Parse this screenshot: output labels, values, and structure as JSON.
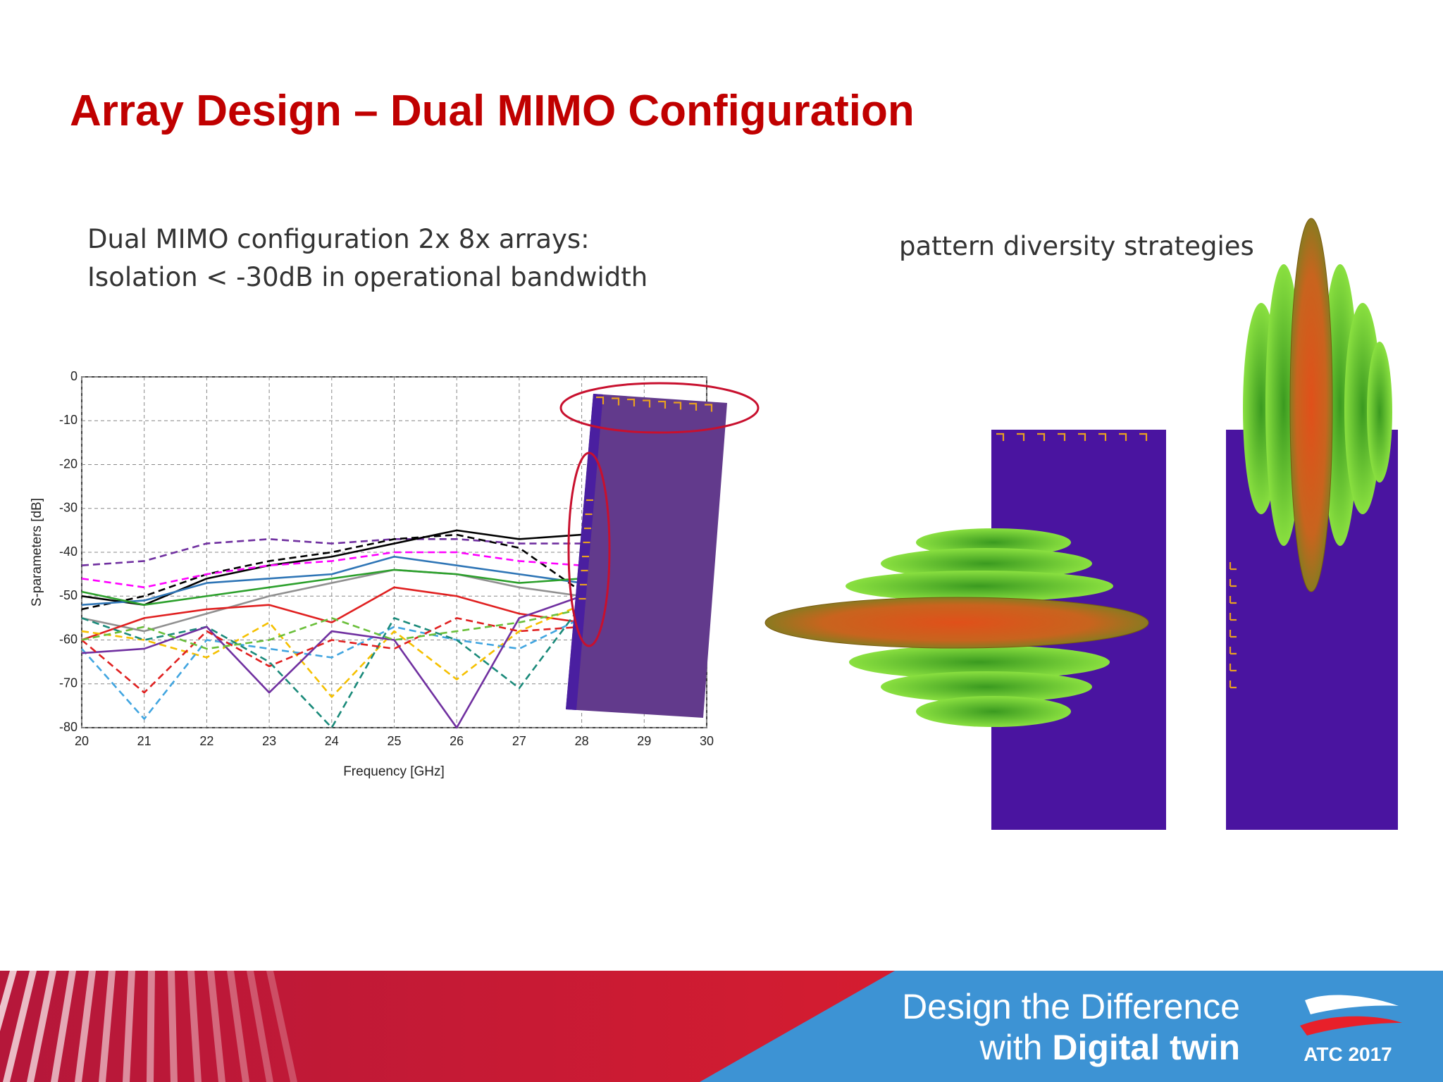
{
  "header": {
    "title": "Array Design – Dual MIMO Configuration"
  },
  "body": {
    "left_lines": [
      "Dual MIMO configuration 2x 8x arrays:",
      "Isolation < -30dB in operational bandwidth"
    ],
    "right_caption": "pattern diversity strategies"
  },
  "chart_data": {
    "type": "line",
    "xlabel": "Frequency [GHz]",
    "ylabel": "S-parameters [dB]",
    "x": [
      20,
      21,
      22,
      23,
      24,
      25,
      26,
      27,
      28
    ],
    "xlim": [
      20,
      30
    ],
    "xticks": [
      20,
      21,
      22,
      23,
      24,
      25,
      26,
      27,
      28,
      29,
      30
    ],
    "ylim": [
      -80,
      0
    ],
    "yticks": [
      0,
      -10,
      -20,
      -30,
      -40,
      -50,
      -60,
      -70,
      -80
    ],
    "grid": true,
    "series": [
      {
        "color": "#7030a0",
        "dashed": true,
        "values": [
          -43,
          -42,
          -38,
          -37,
          -38,
          -37,
          -37,
          -38,
          -38
        ]
      },
      {
        "color": "#000000",
        "dashed": false,
        "values": [
          -50,
          -52,
          -46,
          -43,
          -41,
          -38,
          -35,
          -37,
          -36
        ]
      },
      {
        "color": "#000000",
        "dashed": true,
        "values": [
          -53,
          -50,
          -45,
          -42,
          -40,
          -37,
          -36,
          -39,
          -49
        ]
      },
      {
        "color": "#ff00ff",
        "dashed": true,
        "values": [
          -46,
          -48,
          -45,
          -43,
          -42,
          -40,
          -40,
          -42,
          -43
        ]
      },
      {
        "color": "#2e75b6",
        "dashed": false,
        "values": [
          -52,
          -51,
          -47,
          -46,
          -45,
          -41,
          -43,
          -45,
          -47
        ]
      },
      {
        "color": "#909090",
        "dashed": false,
        "values": [
          -55,
          -58,
          -54,
          -50,
          -47,
          -44,
          -45,
          -48,
          -50
        ]
      },
      {
        "color": "#2ca02c",
        "dashed": false,
        "values": [
          -49,
          -52,
          -50,
          -48,
          -46,
          -44,
          -45,
          -47,
          -46
        ]
      },
      {
        "color": "#e02020",
        "dashed": false,
        "values": [
          -60,
          -55,
          -53,
          -52,
          -56,
          -48,
          -50,
          -54,
          -56
        ]
      },
      {
        "color": "#f5c000",
        "dashed": true,
        "values": [
          -58,
          -60,
          -64,
          -56,
          -73,
          -58,
          -69,
          -58,
          -52
        ]
      },
      {
        "color": "#41a5e0",
        "dashed": true,
        "values": [
          -62,
          -78,
          -60,
          -62,
          -64,
          -57,
          -60,
          -62,
          -55
        ]
      },
      {
        "color": "#1a8a7a",
        "dashed": true,
        "values": [
          -55,
          -60,
          -57,
          -65,
          -80,
          -55,
          -60,
          -71,
          -52
        ]
      },
      {
        "color": "#7030a0",
        "dashed": false,
        "values": [
          -63,
          -62,
          -57,
          -72,
          -58,
          -60,
          -80,
          -55,
          -50
        ]
      },
      {
        "color": "#e02020",
        "dashed": true,
        "values": [
          -60,
          -72,
          -58,
          -66,
          -60,
          -62,
          -55,
          -58,
          -57
        ]
      },
      {
        "color": "#6abf3a",
        "dashed": true,
        "values": [
          -60,
          -57,
          -62,
          -60,
          -55,
          -60,
          -58,
          -56,
          -53
        ]
      }
    ]
  },
  "footer": {
    "line1": "Design the Difference",
    "line2_prefix": "with",
    "line2_bold": "Digital twin",
    "logo": "ATC 2017"
  }
}
